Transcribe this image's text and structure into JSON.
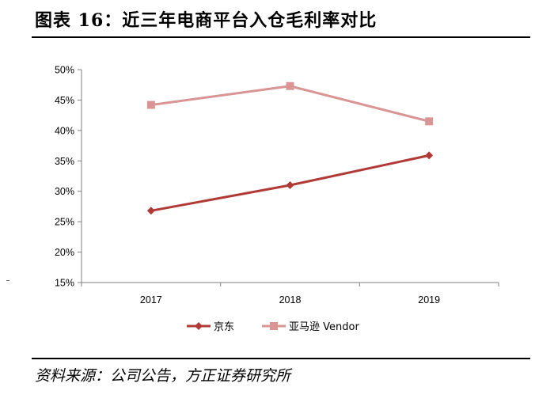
{
  "title": "图表 16：近三年电商平台入仓毛利率对比",
  "source": "资料来源：公司公告，方正证券研究所",
  "chart_data": {
    "type": "line",
    "title": "",
    "xlabel": "",
    "ylabel": "",
    "categories": [
      "2017",
      "2018",
      "2019"
    ],
    "ylim": [
      15,
      50
    ],
    "yticks": [
      15,
      20,
      25,
      30,
      35,
      40,
      45,
      50
    ],
    "ytick_labels": [
      "15%",
      "20%",
      "25%",
      "30%",
      "35%",
      "40%",
      "45%",
      "50%"
    ],
    "grid": false,
    "legend_position": "bottom-center",
    "series": [
      {
        "name": "京东",
        "values": [
          26.8,
          31.0,
          35.9
        ],
        "color": "#b03a35",
        "marker": "diamond"
      },
      {
        "name": "亚马逊 Vendor",
        "values": [
          44.2,
          47.3,
          41.5
        ],
        "color": "#d99593",
        "marker": "square"
      }
    ]
  }
}
